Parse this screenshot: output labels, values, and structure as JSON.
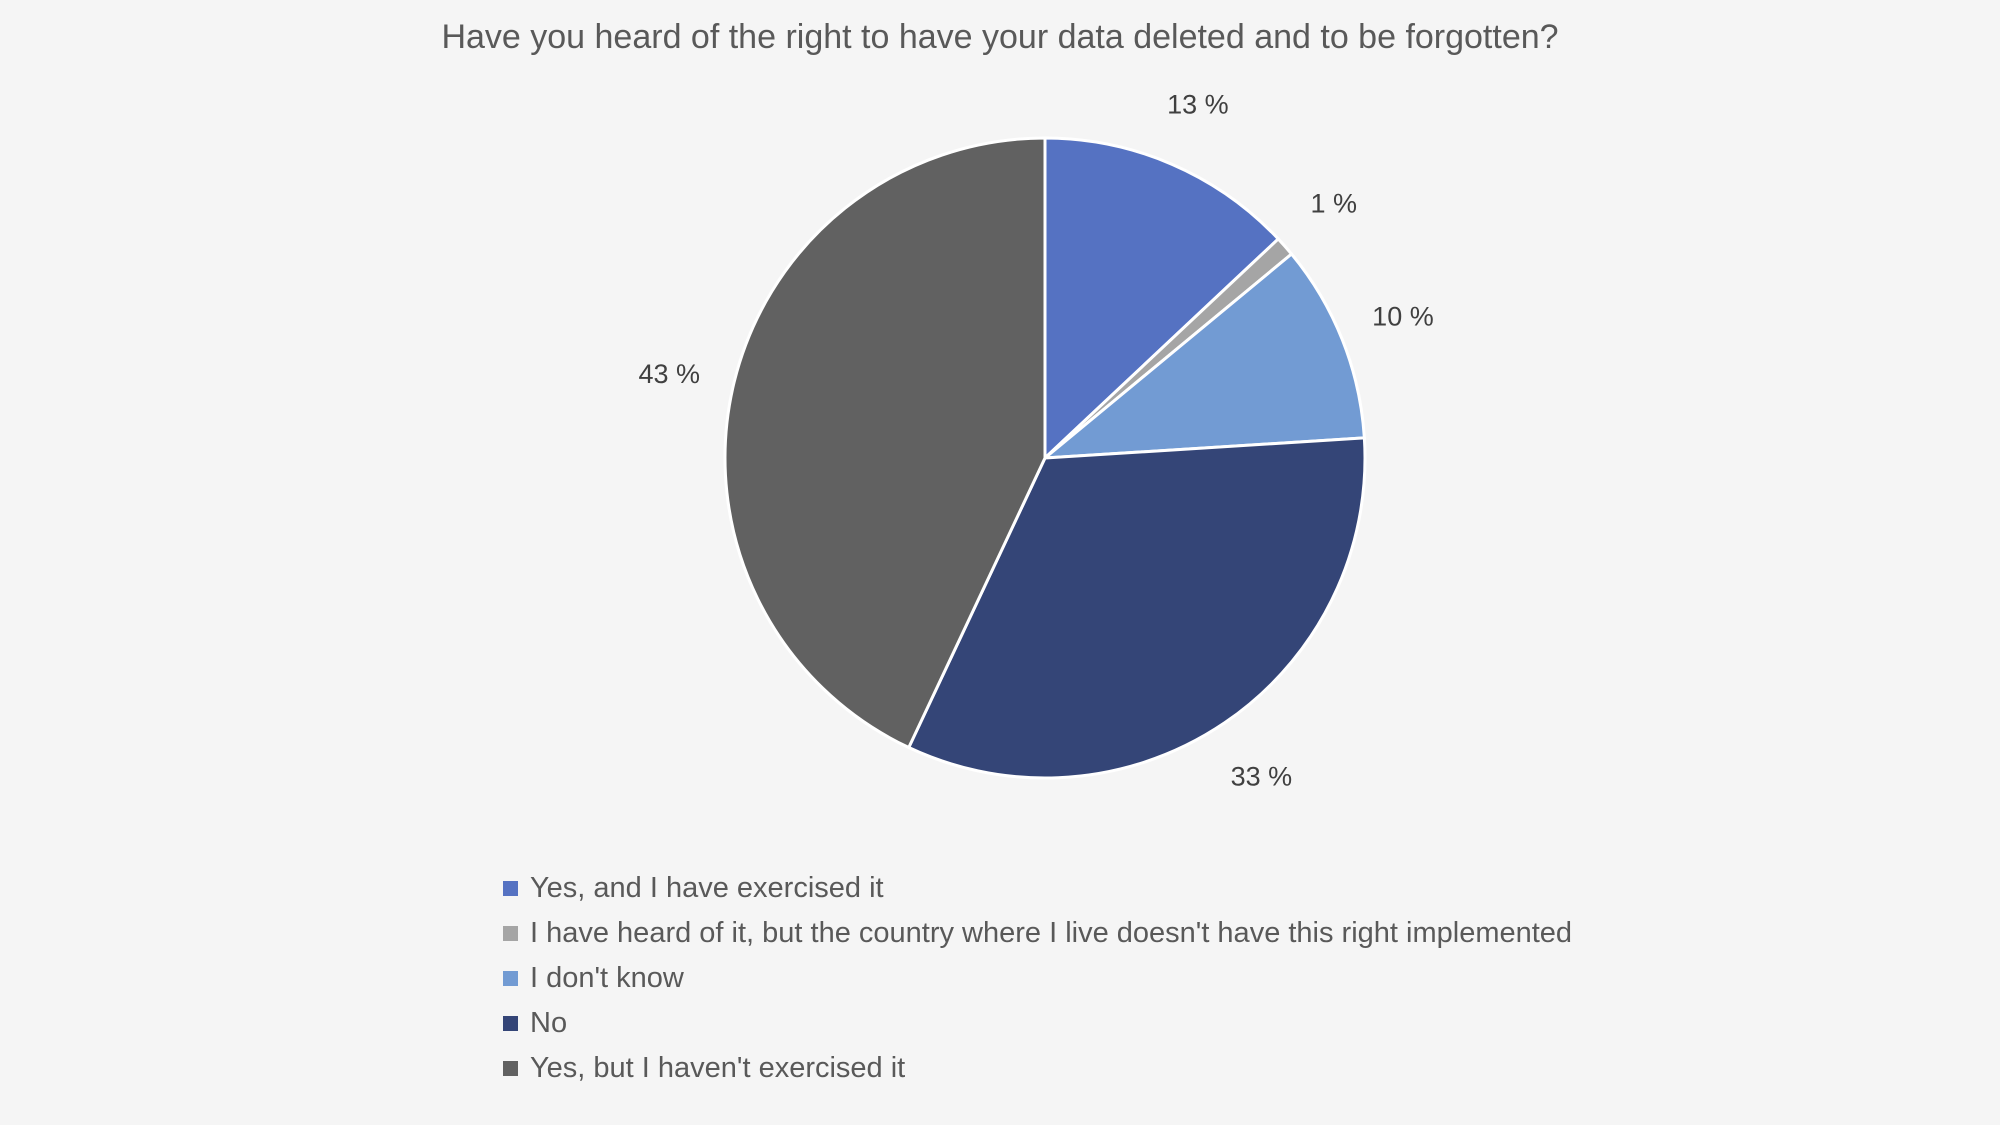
{
  "chart_data": {
    "type": "pie",
    "title": "Have you heard of the right to have your data deleted and to be forgotten?",
    "slices": [
      {
        "label": "Yes, and I have exercised it",
        "value": 13,
        "data_label": "13 %",
        "color": "#5572c2"
      },
      {
        "label": "I have heard of it, but the country where I live doesn't have this right implemented",
        "value": 1,
        "data_label": "1 %",
        "color": "#a5a5a5"
      },
      {
        "label": "I don't know",
        "value": 10,
        "data_label": "10 %",
        "color": "#729bd3"
      },
      {
        "label": "No",
        "value": 33,
        "data_label": "33 %",
        "color": "#344577"
      },
      {
        "label": "Yes, but I haven't exercised it",
        "value": 43,
        "data_label": "43 %",
        "color": "#616161"
      }
    ],
    "start_angle": "12 o'clock",
    "direction": "clockwise",
    "legend_position": "bottom"
  }
}
